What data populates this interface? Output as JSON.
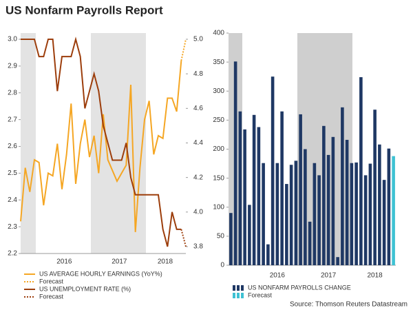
{
  "title": "US Nonfarm Payrolls Report",
  "source": "Source: Thomson Reuters Datastream",
  "chart_data": [
    {
      "type": "line",
      "categories": [
        null,
        null,
        null,
        null,
        null,
        null,
        null,
        null,
        null,
        null,
        "2016",
        null,
        null,
        null,
        null,
        null,
        null,
        null,
        null,
        null,
        null,
        null,
        "2017",
        null,
        null,
        null,
        null,
        null,
        null,
        null,
        null,
        null,
        "2018",
        null,
        null,
        null,
        null
      ],
      "series": [
        {
          "name": "US AVERAGE HOURLY EARNINGS (YoY%)",
          "color": "#f5a623",
          "axis": "y",
          "dash": false,
          "values": [
            2.32,
            2.52,
            2.43,
            2.55,
            2.54,
            2.38,
            2.5,
            2.49,
            2.61,
            2.44,
            2.57,
            2.76,
            2.46,
            2.61,
            2.7,
            2.56,
            2.64,
            2.5,
            2.72,
            2.55,
            2.51,
            2.47,
            2.5,
            2.53,
            2.83,
            2.28,
            2.52,
            2.7,
            2.77,
            2.57,
            2.64,
            2.63,
            2.78,
            2.78,
            2.73,
            2.92,
            null
          ]
        },
        {
          "name": "Forecast",
          "color": "#f5a623",
          "axis": "y",
          "dash": true,
          "values": [
            null,
            null,
            null,
            null,
            null,
            null,
            null,
            null,
            null,
            null,
            null,
            null,
            null,
            null,
            null,
            null,
            null,
            null,
            null,
            null,
            null,
            null,
            null,
            null,
            null,
            null,
            null,
            null,
            null,
            null,
            null,
            null,
            null,
            null,
            null,
            2.92,
            3.0
          ]
        },
        {
          "name": "US UNEMPLOYMENT RATE (%)",
          "color": "#9c3d0b",
          "axis": "y2",
          "dash": false,
          "values": [
            5.0,
            5.0,
            5.0,
            5.0,
            4.9,
            4.9,
            5.0,
            5.0,
            4.7,
            4.9,
            4.9,
            4.9,
            5.0,
            4.9,
            4.6,
            4.7,
            4.8,
            4.7,
            4.5,
            4.4,
            4.3,
            4.3,
            4.3,
            4.4,
            4.2,
            4.1,
            4.1,
            4.1,
            4.1,
            4.1,
            4.1,
            3.9,
            3.8,
            4.0,
            3.9,
            3.9,
            null
          ]
        },
        {
          "name": "Forecast",
          "color": "#9c3d0b",
          "axis": "y2",
          "dash": true,
          "values": [
            null,
            null,
            null,
            null,
            null,
            null,
            null,
            null,
            null,
            null,
            null,
            null,
            null,
            null,
            null,
            null,
            null,
            null,
            null,
            null,
            null,
            null,
            null,
            null,
            null,
            null,
            null,
            null,
            null,
            null,
            null,
            null,
            null,
            null,
            null,
            3.9,
            3.8
          ]
        }
      ],
      "ylim": [
        2.2,
        3.0
      ],
      "yticks": [
        2.2,
        2.3,
        2.4,
        2.5,
        2.6,
        2.7,
        2.8,
        2.9,
        {
          "value": 3,
          "label": "3.0"
        }
      ],
      "y2lim": [
        3.76,
        5.0
      ],
      "y2ticks": [
        3.8,
        {
          "value": 4,
          "label": "4.0"
        },
        4.2,
        4.4,
        4.6,
        4.8,
        {
          "value": 5,
          "label": "5.0"
        }
      ]
    },
    {
      "type": "bar",
      "categories": [
        null,
        null,
        null,
        null,
        null,
        null,
        null,
        null,
        null,
        null,
        "2016",
        null,
        null,
        null,
        null,
        null,
        null,
        null,
        null,
        null,
        null,
        "2017",
        null,
        null,
        null,
        null,
        null,
        null,
        null,
        null,
        null,
        "2018",
        null,
        null,
        null,
        null
      ],
      "series": [
        {
          "name": "US NONFARM PAYROLLS CHANGE",
          "color": "#1f3864",
          "values": [
            90,
            351,
            265,
            234,
            104,
            259,
            238,
            176,
            36,
            325,
            176,
            265,
            140,
            173,
            180,
            260,
            200,
            75,
            176,
            155,
            240,
            190,
            221,
            14,
            272,
            216,
            176,
            177,
            324,
            155,
            175,
            268,
            208,
            147,
            201,
            null
          ]
        },
        {
          "name": "Forecast",
          "color": "#3ec1d3",
          "values": [
            null,
            null,
            null,
            null,
            null,
            null,
            null,
            null,
            null,
            null,
            null,
            null,
            null,
            null,
            null,
            null,
            null,
            null,
            null,
            null,
            null,
            null,
            null,
            null,
            null,
            null,
            null,
            null,
            null,
            null,
            null,
            null,
            null,
            null,
            null,
            188
          ]
        }
      ],
      "ylim": [
        0,
        400
      ],
      "yticks": [
        0,
        50,
        100,
        150,
        200,
        250,
        300,
        350,
        400
      ]
    }
  ]
}
